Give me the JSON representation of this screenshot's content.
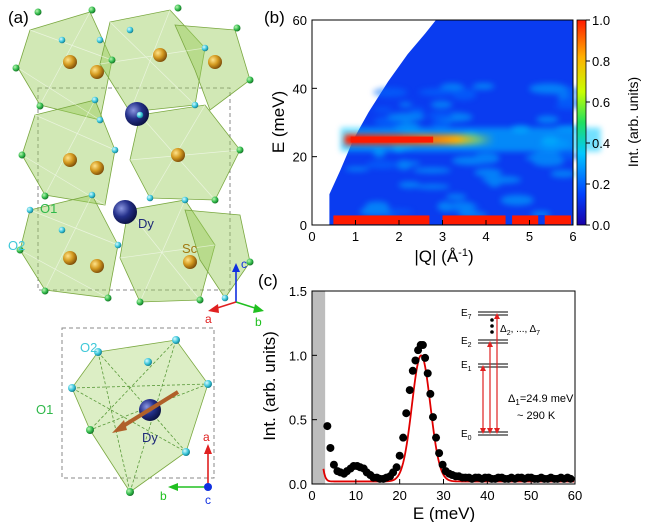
{
  "panel_a": {
    "label": "(a)",
    "atoms": {
      "o1": "O1",
      "o2": "O2",
      "dy": "Dy",
      "sc": "Sc"
    },
    "axes_top": {
      "a": "a",
      "b": "b",
      "c": "c"
    },
    "axes_bottom": {
      "a": "a",
      "b": "b",
      "c": "c"
    },
    "colors": {
      "octahedron": "#9acd5a",
      "sc": "#c8961e",
      "dy": "#1e2a78",
      "o1": "#2fb84a",
      "o2": "#3fc8d8",
      "axis_a": "#e02020",
      "axis_b": "#20c020",
      "axis_c": "#1030e0",
      "moment": "#b0602a"
    }
  },
  "chart_data": [
    {
      "type": "heatmap",
      "panel_label": "(b)",
      "xlabel_main": "|Q| (Å",
      "xlabel_sup": "-1",
      "xlabel_close": ")",
      "ylabel": "E (meV)",
      "xlim": [
        0,
        6
      ],
      "ylim": [
        0,
        60
      ],
      "xticks": [
        "0",
        "1",
        "2",
        "3",
        "4",
        "5",
        "6"
      ],
      "yticks": [
        "0",
        "20",
        "40",
        "60"
      ],
      "colorbar": {
        "label": "Int. (arb. units)",
        "range": [
          0.0,
          1.0
        ],
        "ticks": [
          "0.0",
          "0.2",
          "0.4",
          "0.6",
          "0.8",
          "1.0"
        ],
        "colormap": [
          "#1a00a8",
          "#0040ff",
          "#00c8ff",
          "#20e060",
          "#c8ff00",
          "#ffb000",
          "#ff1a00"
        ]
      },
      "coverage_left_edge": [
        [
          0.4,
          0
        ],
        [
          0.4,
          9
        ],
        [
          0.65,
          16
        ],
        [
          0.95,
          25
        ],
        [
          1.3,
          33
        ],
        [
          1.75,
          42
        ],
        [
          2.2,
          50
        ],
        [
          2.6,
          56
        ],
        [
          2.85,
          60
        ]
      ],
      "features": [
        {
          "name": "crystal-field band",
          "x_range": [
            0.75,
            4.2
          ],
          "y": 25,
          "intensity": 1.0
        },
        {
          "name": "elastic line",
          "x_range": [
            0.4,
            6
          ],
          "y": 1.5,
          "intensity": 1.0
        }
      ]
    },
    {
      "type": "scatter",
      "panel_label": "(c)",
      "xlabel": "E (meV)",
      "ylabel": "Int. (arb. units)",
      "xlim": [
        0,
        60
      ],
      "ylim": [
        0,
        1.5
      ],
      "xticks": [
        "0",
        "10",
        "20",
        "30",
        "40",
        "50",
        "60"
      ],
      "yticks": [
        "0.0",
        "0.5",
        "1.0",
        "1.5"
      ],
      "shaded_region": [
        0,
        3
      ],
      "series": [
        {
          "marker": "circle",
          "color": "#000000",
          "x": [
            3.5,
            4.2,
            5,
            5.8,
            6.5,
            7.3,
            8,
            8.8,
            9.5,
            10.3,
            11,
            11.8,
            12.5,
            13.3,
            14,
            14.8,
            15.5,
            16.3,
            17,
            17.8,
            18.5,
            19.3,
            20,
            20.8,
            21.5,
            22.3,
            23,
            23.6,
            24.2,
            24.8,
            25.3,
            25.8,
            26.4,
            27,
            27.6,
            28.3,
            29,
            29.8,
            30.5,
            31.3,
            32,
            32.8,
            33.5,
            34.3,
            35,
            35.8,
            36.5,
            37.3,
            38,
            38.8,
            39.5,
            40.3,
            41,
            41.8,
            42.5,
            43.3,
            44,
            44.8,
            45.5,
            46.3,
            47,
            47.8,
            48.5,
            49.3,
            50,
            50.8,
            51.5,
            52.3,
            53,
            53.8,
            54.5,
            55.3,
            56,
            56.8,
            57.5,
            58.3,
            59
          ],
          "y": [
            0.45,
            0.28,
            0.15,
            0.1,
            0.09,
            0.08,
            0.1,
            0.12,
            0.14,
            0.14,
            0.13,
            0.12,
            0.09,
            0.07,
            0.05,
            0.05,
            0.04,
            0.04,
            0.05,
            0.06,
            0.09,
            0.13,
            0.22,
            0.36,
            0.55,
            0.73,
            0.88,
            0.96,
            1.04,
            1.08,
            1.08,
            0.98,
            0.86,
            0.7,
            0.52,
            0.36,
            0.24,
            0.15,
            0.1,
            0.08,
            0.07,
            0.06,
            0.06,
            0.05,
            0.05,
            0.05,
            0.04,
            0.05,
            0.05,
            0.04,
            0.05,
            0.05,
            0.04,
            0.04,
            0.05,
            0.05,
            0.04,
            0.04,
            0.05,
            0.04,
            0.05,
            0.05,
            0.04,
            0.05,
            0.05,
            0.04,
            0.04,
            0.05,
            0.04,
            0.04,
            0.05,
            0.04,
            0.04,
            0.05,
            0.04,
            0.05,
            0.04
          ]
        },
        {
          "marker": "line",
          "color": "#e00000",
          "model": {
            "elastic_amplitude": 1.6,
            "elastic_center": 0,
            "elastic_width": 1.1,
            "peak_amplitude": 0.98,
            "peak_center": 24.9,
            "peak_width": 2.1,
            "background": 0.02
          }
        }
      ],
      "inset": {
        "levels": [
          {
            "label_main": "E",
            "label_sub": "7"
          },
          {
            "label_main": "E",
            "label_sub": "2"
          },
          {
            "label_main": "E",
            "label_sub": "1"
          },
          {
            "label_main": "E",
            "label_sub": "0"
          }
        ],
        "gaps_text": {
          "d1": "Δ",
          "s1": "2",
          "mid": ", ..., Δ",
          "s2": "7"
        },
        "delta1_main": "Δ",
        "delta1_sub": "1",
        "delta1_rest": "=24.9 meV",
        "temperature": "~ 290 K"
      }
    }
  ]
}
